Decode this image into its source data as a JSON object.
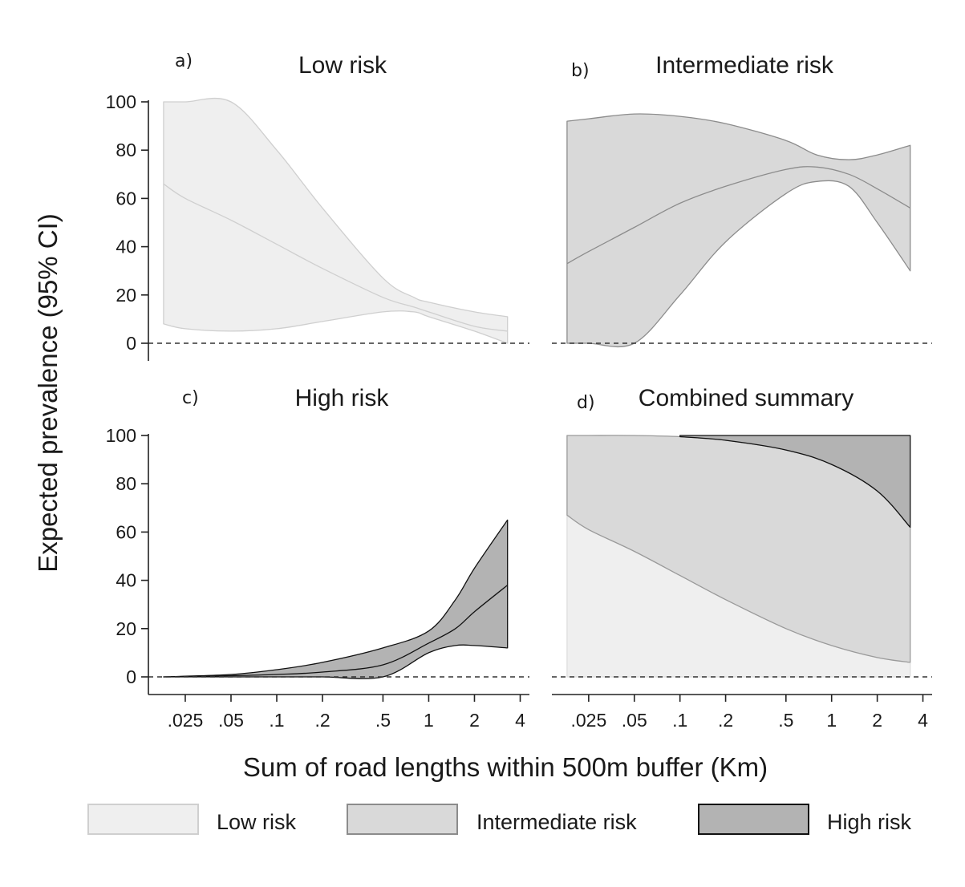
{
  "figure": {
    "y_axis_title": "Expected prevalence (95% CI)",
    "x_axis_title": "Sum of road lengths within 500m buffer (Km)",
    "legend": [
      {
        "label": "Low risk",
        "fill": "#efefef",
        "stroke": "#cfcfcf"
      },
      {
        "label": "Intermediate risk",
        "fill": "#d9d9d9",
        "stroke": "#8c8c8c"
      },
      {
        "label": "High risk",
        "fill": "#b3b3b3",
        "stroke": "#111111"
      }
    ]
  },
  "chart_data": [
    {
      "panel": "a)",
      "title": "Low risk",
      "type": "area",
      "x_scale": "log",
      "ylim": [
        0,
        100
      ],
      "xlim": [
        0.015,
        4
      ],
      "x_ticks": [
        ".025",
        ".05",
        ".1",
        ".2",
        ".5",
        "1",
        "2",
        "4"
      ],
      "y_ticks": [
        "0",
        "20",
        "40",
        "60",
        "80",
        "100"
      ],
      "reference_line": 0,
      "series": [
        {
          "fill": "#efefef",
          "stroke": "#cfcfcf",
          "x": [
            0.018,
            0.025,
            0.05,
            0.1,
            0.2,
            0.5,
            0.8,
            1,
            2,
            3.3
          ],
          "mean": [
            66,
            60,
            51,
            41,
            31,
            19,
            15,
            13,
            7,
            5
          ],
          "lower": [
            8,
            6,
            5,
            6,
            9,
            13,
            13,
            11,
            5,
            0
          ],
          "upper": [
            100,
            100,
            100,
            80,
            56,
            27,
            19,
            17,
            13,
            11
          ]
        }
      ]
    },
    {
      "panel": "b)",
      "title": "Intermediate risk",
      "type": "area",
      "x_scale": "log",
      "ylim": [
        0,
        100
      ],
      "xlim": [
        0.015,
        4
      ],
      "x_ticks": [
        ".025",
        ".05",
        ".1",
        ".2",
        ".5",
        "1",
        "2",
        "4"
      ],
      "y_ticks": [
        "0",
        "20",
        "40",
        "60",
        "80",
        "100"
      ],
      "reference_line": 0,
      "series": [
        {
          "fill": "#d9d9d9",
          "stroke": "#8c8c8c",
          "x": [
            0.018,
            0.025,
            0.05,
            0.1,
            0.2,
            0.5,
            0.8,
            1.3,
            2,
            3.3
          ],
          "mean": [
            33,
            38,
            48,
            58,
            65,
            72,
            73,
            70,
            64,
            56
          ],
          "lower": [
            0,
            0,
            0,
            20,
            42,
            62,
            67,
            65,
            50,
            30
          ],
          "upper": [
            92,
            93,
            95,
            94,
            91,
            84,
            78,
            76,
            78,
            82
          ]
        }
      ]
    },
    {
      "panel": "c)",
      "title": "High risk",
      "type": "area",
      "x_scale": "log",
      "ylim": [
        0,
        100
      ],
      "xlim": [
        0.015,
        4
      ],
      "x_ticks": [
        ".025",
        ".05",
        ".1",
        ".2",
        ".5",
        "1",
        "2",
        "4"
      ],
      "y_ticks": [
        "0",
        "20",
        "40",
        "60",
        "80",
        "100"
      ],
      "reference_line": 0,
      "series": [
        {
          "fill": "#b3b3b3",
          "stroke": "#111111",
          "x": [
            0.018,
            0.05,
            0.1,
            0.2,
            0.5,
            1,
            1.5,
            2,
            3.3
          ],
          "mean": [
            0,
            0.5,
            1,
            2,
            5,
            14,
            20,
            27,
            38
          ],
          "lower": [
            0,
            0,
            0,
            0,
            0,
            10,
            13,
            13,
            12
          ],
          "upper": [
            0,
            1,
            3,
            6,
            12,
            19,
            32,
            45,
            65
          ]
        }
      ]
    },
    {
      "panel": "d)",
      "title": "Combined summary",
      "type": "area",
      "stacked": true,
      "x_scale": "log",
      "ylim": [
        0,
        100
      ],
      "xlim": [
        0.015,
        4
      ],
      "x_ticks": [
        ".025",
        ".05",
        ".1",
        ".2",
        ".5",
        "1",
        "2",
        "4"
      ],
      "reference_line": 0,
      "series": [
        {
          "name": "Low risk",
          "fill": "#efefef",
          "stroke": "#dddddd",
          "x": [
            0.018,
            0.025,
            0.05,
            0.1,
            0.2,
            0.5,
            1,
            2,
            3.3
          ],
          "lower": [
            0,
            0,
            0,
            0,
            0,
            0,
            0,
            0,
            0
          ],
          "upper": [
            67,
            61,
            52,
            42,
            32,
            20,
            13,
            8,
            6
          ]
        },
        {
          "name": "Intermediate risk",
          "fill": "#d9d9d9",
          "stroke": "#9a9a9a",
          "x": [
            0.018,
            0.025,
            0.05,
            0.1,
            0.2,
            0.5,
            1,
            2,
            3.3
          ],
          "lower": [
            67,
            61,
            52,
            42,
            32,
            20,
            13,
            8,
            6
          ],
          "upper": [
            100,
            100,
            100,
            99.5,
            98,
            94,
            88,
            77,
            62
          ]
        },
        {
          "name": "High risk",
          "fill": "#b3b3b3",
          "stroke": "#111111",
          "x": [
            0.1,
            0.2,
            0.5,
            1,
            2,
            3.3
          ],
          "lower": [
            99.5,
            98,
            94,
            88,
            77,
            62
          ],
          "upper": [
            100,
            100,
            100,
            100,
            100,
            100
          ]
        }
      ]
    }
  ]
}
